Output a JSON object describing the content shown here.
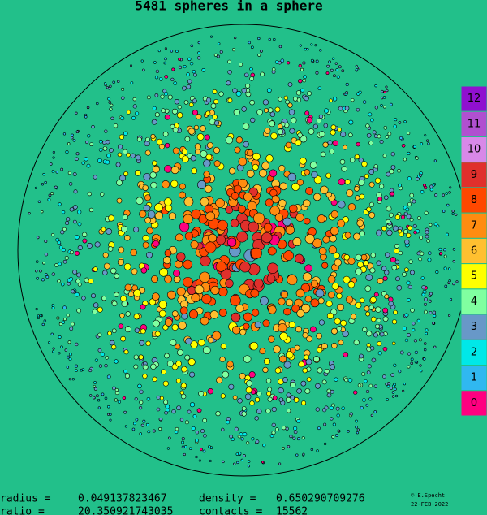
{
  "title": "5481 spheres in a sphere",
  "legend": [
    {
      "label": "12",
      "color": "#9010d0"
    },
    {
      "label": "11",
      "color": "#b050d0"
    },
    {
      "label": "10",
      "color": "#d888e8"
    },
    {
      "label": "9",
      "color": "#e0302c"
    },
    {
      "label": "8",
      "color": "#ff4800"
    },
    {
      "label": "7",
      "color": "#ff8c10"
    },
    {
      "label": "6",
      "color": "#ffc030"
    },
    {
      "label": "5",
      "color": "#ffff00"
    },
    {
      "label": "4",
      "color": "#80ffa0"
    },
    {
      "label": "3",
      "color": "#6898c8"
    },
    {
      "label": "2",
      "color": "#00e8e8"
    },
    {
      "label": "1",
      "color": "#30b8f0"
    },
    {
      "label": "0",
      "color": "#ff0080"
    }
  ],
  "stats": [
    {
      "label": "radius =",
      "value": "0.049137823467"
    },
    {
      "label": "density =",
      "value": "0.650290709276"
    },
    {
      "label": "ratio =",
      "value": "20.350921743035"
    },
    {
      "label": "contacts =",
      "value": "15562"
    }
  ],
  "credit": "© E.Specht",
  "date": "22-FEB-2022"
}
